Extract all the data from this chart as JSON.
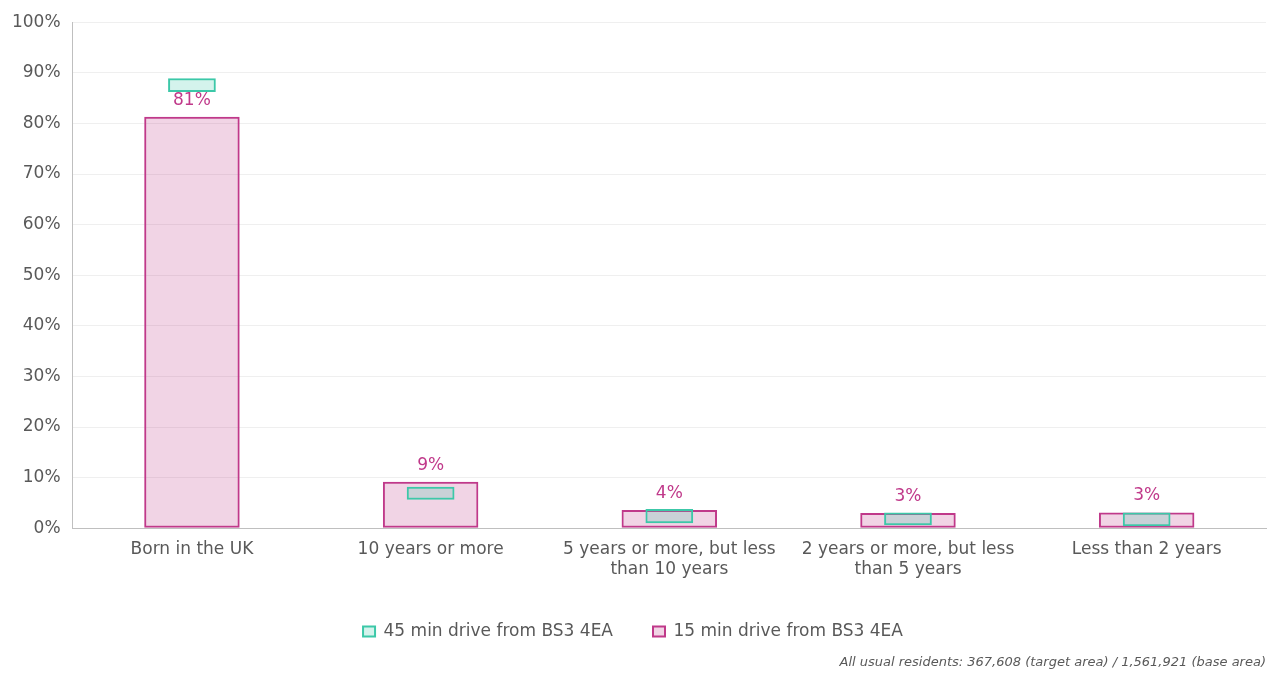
{
  "chart_data": {
    "type": "bar",
    "categories": [
      "Born in the UK",
      "10 years or more",
      "5 years or more, but less than 10 years",
      "2 years or more, but less than 5 years",
      "Less than 2 years"
    ],
    "series": [
      {
        "name": "15 min drive from BS3 4EA",
        "color": "#c0398a",
        "values": [
          81.3,
          9.2,
          3.6,
          3.0,
          3.1
        ],
        "value_labels": [
          "81%",
          "9%",
          "4%",
          "3%",
          "3%"
        ]
      },
      {
        "name": "45 min drive from BS3 4EA",
        "color": "#3cc8a8",
        "values": [
          2.7,
          2.6,
          2.8,
          2.5,
          2.7
        ],
        "base": [
          86.2,
          5.6,
          1.0,
          0.6,
          0.4
        ]
      }
    ],
    "ylim": [
      0,
      100
    ],
    "yticks": [
      {
        "value": 0,
        "label": "0%"
      },
      {
        "value": 10,
        "label": "10%"
      },
      {
        "value": 20,
        "label": "20%"
      },
      {
        "value": 30,
        "label": "30%"
      },
      {
        "value": 40,
        "label": "40%"
      },
      {
        "value": 50,
        "label": "50%"
      },
      {
        "value": 60,
        "label": "60%"
      },
      {
        "value": 70,
        "label": "70%"
      },
      {
        "value": 80,
        "label": "80%"
      },
      {
        "value": 90,
        "label": "90%"
      },
      {
        "value": 100,
        "label": "100%"
      }
    ],
    "grid": "y",
    "legend": "bottom",
    "annotations": [
      "All usual residents: 367,608 (target area) / 1,561,921 (base area)"
    ]
  }
}
